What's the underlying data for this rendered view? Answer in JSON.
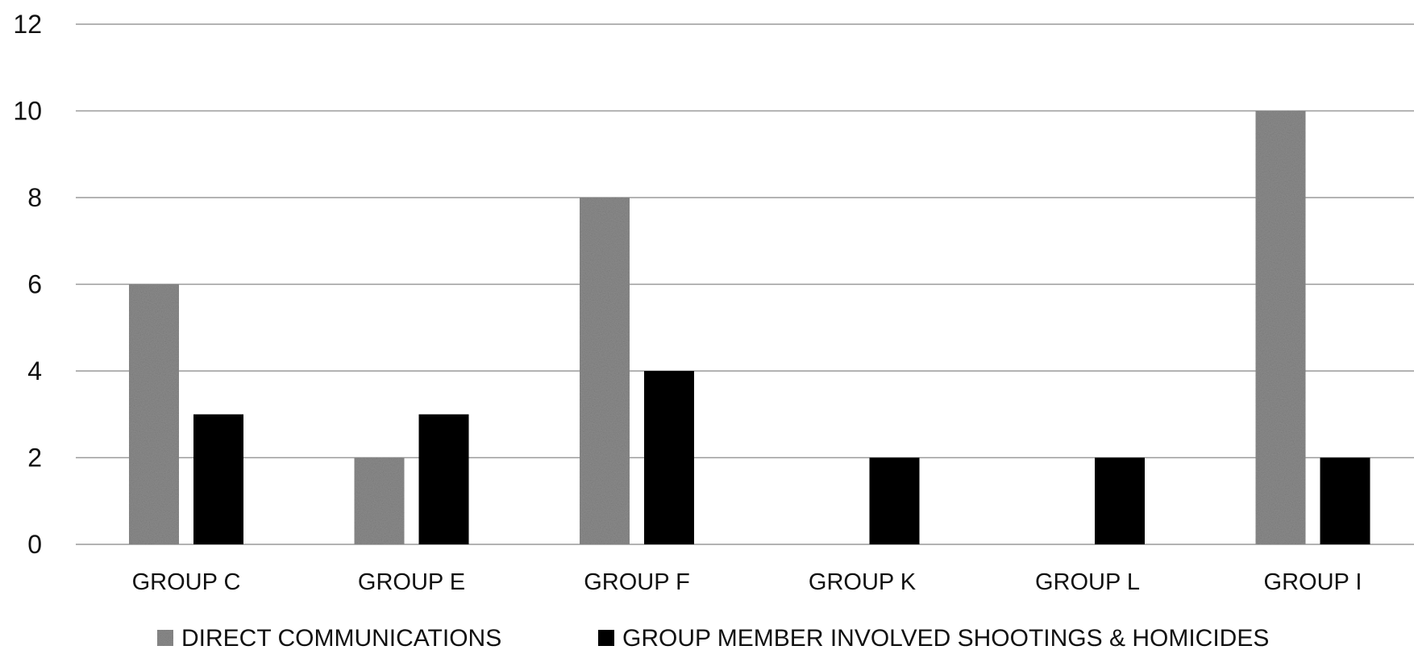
{
  "chart_data": {
    "type": "bar",
    "categories": [
      "GROUP C",
      "GROUP E",
      "GROUP F",
      "GROUP K",
      "GROUP L",
      "GROUP I"
    ],
    "series": [
      {
        "name": "DIRECT COMMUNICATIONS",
        "values": [
          6,
          2,
          8,
          0,
          0,
          10
        ],
        "color": "#8c8c8c"
      },
      {
        "name": "GROUP MEMBER INVOLVED SHOOTINGS & HOMICIDES",
        "values": [
          3,
          3,
          4,
          2,
          2,
          2
        ],
        "color": "#000000"
      }
    ],
    "ylim": [
      0,
      12
    ],
    "yticks": [
      "0",
      "2",
      "4",
      "6",
      "8",
      "10",
      "12"
    ],
    "grid": true,
    "legend_position": "bottom"
  }
}
